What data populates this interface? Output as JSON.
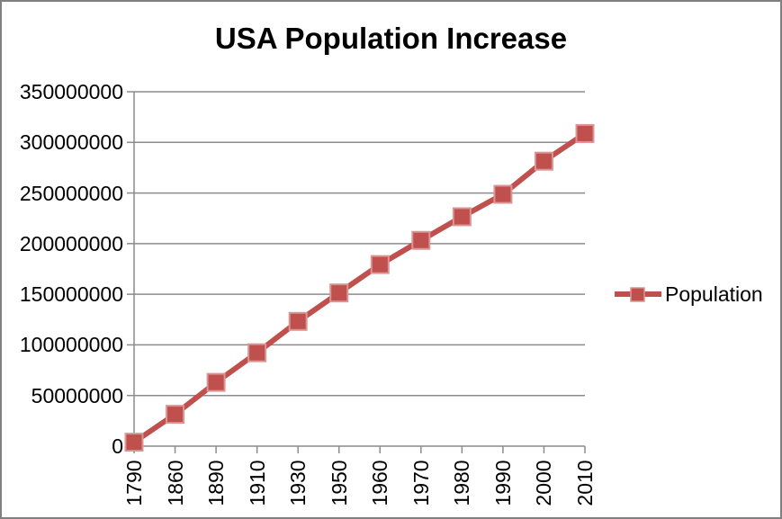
{
  "chart_data": {
    "type": "line",
    "title": "USA Population Increase",
    "categories": [
      "1790",
      "1860",
      "1890",
      "1910",
      "1930",
      "1950",
      "1960",
      "1970",
      "1980",
      "1990",
      "2000",
      "2010"
    ],
    "series": [
      {
        "name": "Population",
        "values": [
          3929214,
          31443321,
          62979766,
          92228496,
          123202624,
          151325798,
          179323175,
          203211926,
          226545805,
          248709873,
          281421906,
          308745538
        ]
      }
    ],
    "ylim": [
      0,
      350000000
    ],
    "y_tick_step": 50000000,
    "y_tick_labels": [
      "0",
      "50000000",
      "100000000",
      "150000000",
      "200000000",
      "250000000",
      "300000000",
      "350000000"
    ],
    "x_tick_rotation": -90,
    "grid": "horizontal",
    "legend_position": "right"
  },
  "colors": {
    "series": "#C0504D",
    "marker_border": "#D99694",
    "gridline": "#8C8C8C",
    "axis": "#8C8C8C",
    "text": "#000000",
    "background": "#FFFFFF",
    "chart_border": "#808080"
  }
}
